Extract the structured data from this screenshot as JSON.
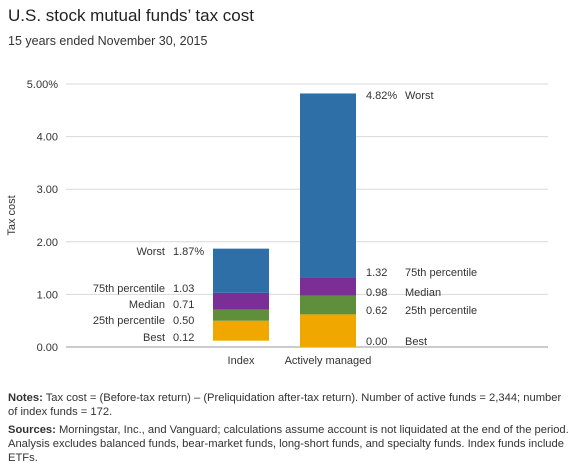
{
  "header": {
    "title": "U.S. stock mutual funds’ tax cost",
    "subtitle": "15 years ended November 30, 2015"
  },
  "chart_data": {
    "type": "bar",
    "subtype": "floating-range",
    "ylabel": "Tax cost",
    "xlabel": "",
    "ylim": [
      0,
      5
    ],
    "yticks": [
      "0.00",
      "1.00",
      "2.00",
      "3.00",
      "4.00",
      "5.00%"
    ],
    "grid": true,
    "categories": [
      "Index",
      "Actively managed"
    ],
    "series": [
      {
        "category": "Index",
        "segments": [
          {
            "from": 0.12,
            "to": 0.5,
            "color": "#f0a800"
          },
          {
            "from": 0.5,
            "to": 0.71,
            "color": "#5f8f3a"
          },
          {
            "from": 0.71,
            "to": 1.03,
            "color": "#7b2f96"
          },
          {
            "from": 1.03,
            "to": 1.87,
            "color": "#2f6fa8"
          }
        ],
        "labels": [
          {
            "name": "Worst",
            "value": 1.87,
            "text": "1.87%"
          },
          {
            "name": "75th percentile",
            "value": 1.03,
            "text": "1.03"
          },
          {
            "name": "Median",
            "value": 0.71,
            "text": "0.71"
          },
          {
            "name": "25th percentile",
            "value": 0.5,
            "text": "0.50"
          },
          {
            "name": "Best",
            "value": 0.12,
            "text": "0.12"
          }
        ]
      },
      {
        "category": "Actively managed",
        "segments": [
          {
            "from": 0.0,
            "to": 0.62,
            "color": "#f0a800"
          },
          {
            "from": 0.62,
            "to": 0.98,
            "color": "#5f8f3a"
          },
          {
            "from": 0.98,
            "to": 1.32,
            "color": "#7b2f96"
          },
          {
            "from": 1.32,
            "to": 4.82,
            "color": "#2f6fa8"
          }
        ],
        "labels": [
          {
            "name": "Worst",
            "value": 4.82,
            "text": "4.82%"
          },
          {
            "name": "75th percentile",
            "value": 1.32,
            "text": "1.32"
          },
          {
            "name": "Median",
            "value": 0.98,
            "text": "0.98"
          },
          {
            "name": "25th percentile",
            "value": 0.62,
            "text": "0.62"
          },
          {
            "name": "Best",
            "value": 0.0,
            "text": "0.00"
          }
        ]
      }
    ]
  },
  "notes": {
    "notes_label": "Notes:",
    "notes_text": " Tax cost = (Before-tax return) – (Preliquidation after-tax return). Number of active funds = 2,344; number of index funds = 172.",
    "sources_label": "Sources:",
    "sources_text": " Morningstar, Inc., and Vanguard; calculations assume account is not liquidated at the end of the period. Analysis excludes balanced funds, bear-market funds, long-short funds, and specialty funds. Index funds include ETFs."
  }
}
